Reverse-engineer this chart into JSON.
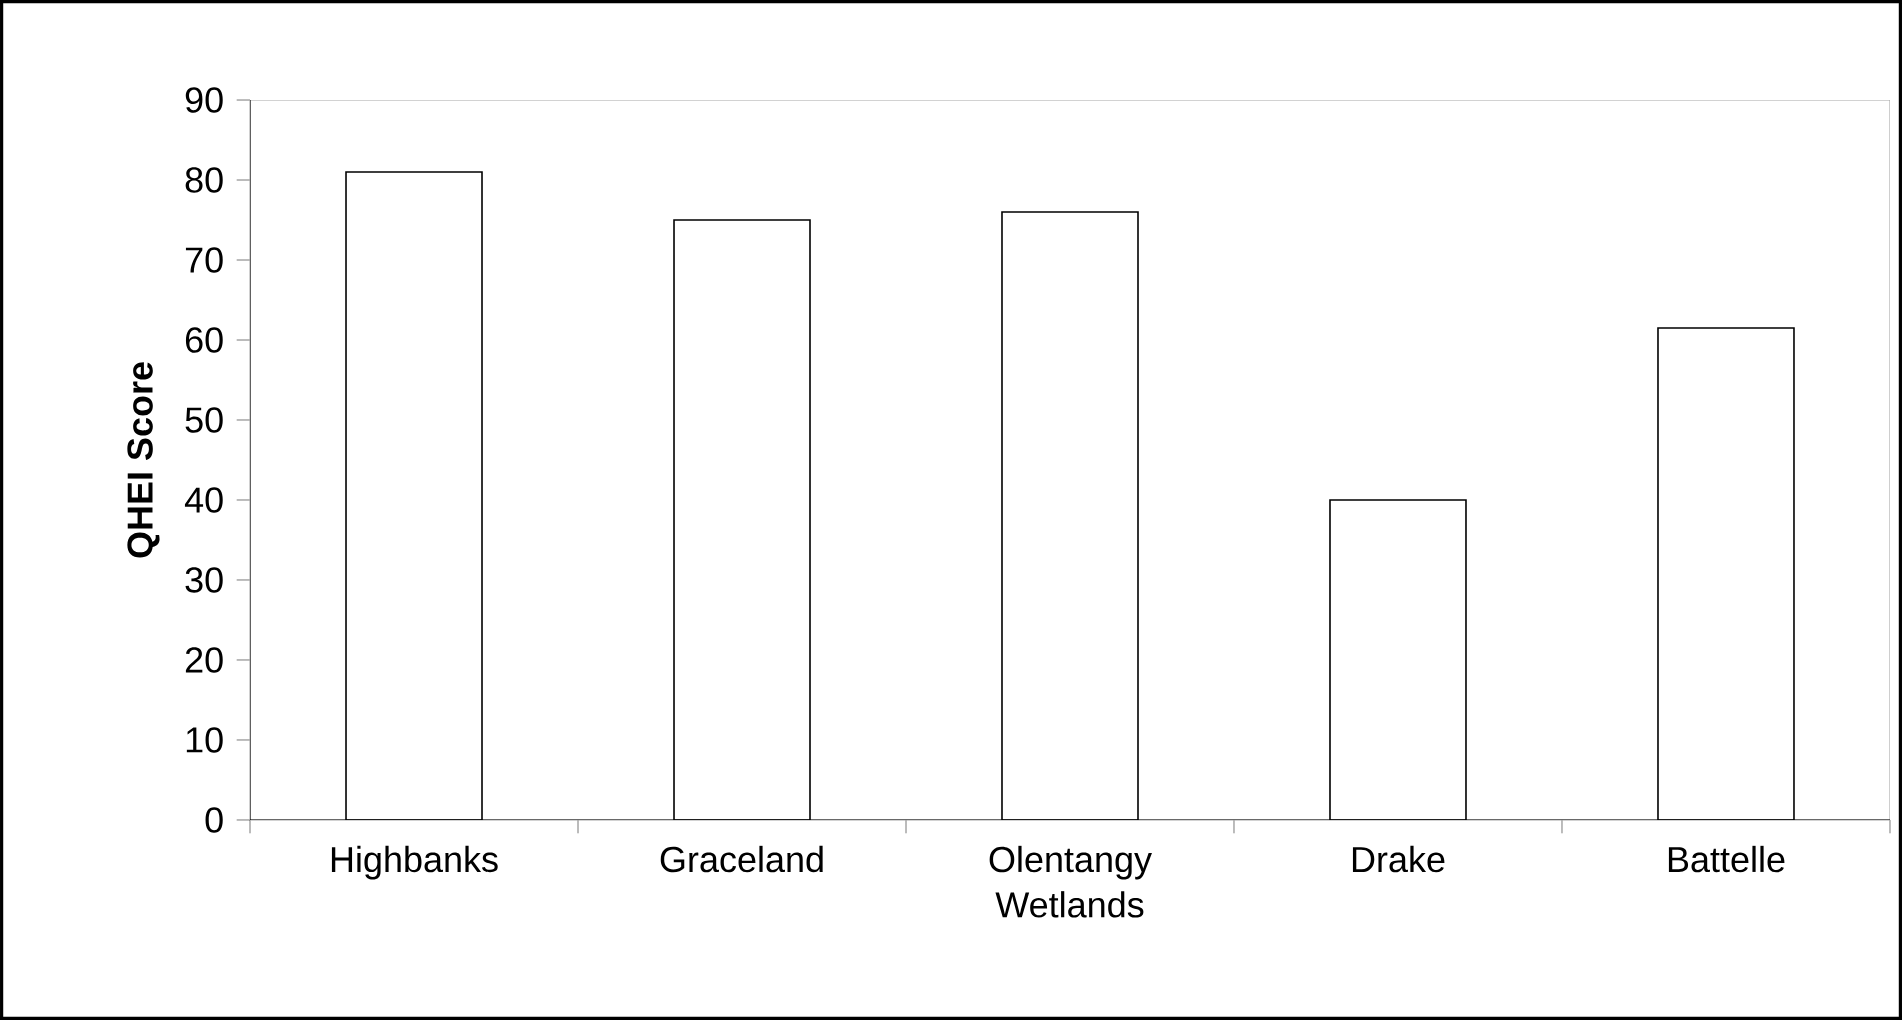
{
  "chart_data": {
    "type": "bar",
    "ylabel": "QHEI Score",
    "categories": [
      "Highbanks",
      "Graceland",
      "Olentangy Wetlands",
      "Drake",
      "Battelle"
    ],
    "values": [
      81,
      75,
      76,
      40,
      61.5
    ],
    "color": "#ffffff",
    "ylim": [
      0,
      90
    ],
    "yticks": [
      0,
      10,
      20,
      30,
      40,
      50,
      60,
      70,
      80,
      90
    ]
  }
}
